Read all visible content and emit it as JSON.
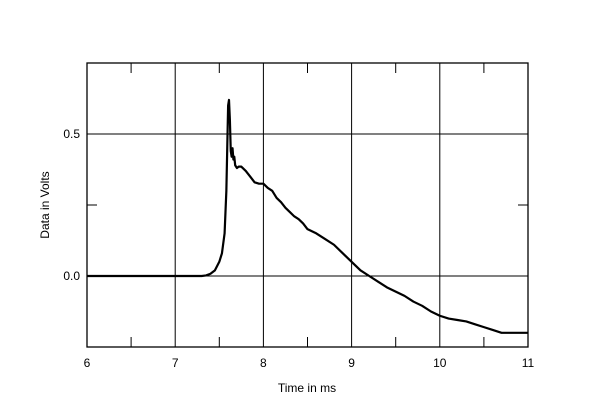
{
  "chart_data": {
    "type": "line",
    "title": "",
    "xlabel": "Time in ms",
    "ylabel": "Data in Volts",
    "xlim": [
      6,
      11
    ],
    "ylim": [
      -0.25,
      0.75
    ],
    "grid": true,
    "x_ticks": [
      6,
      7,
      8,
      9,
      10,
      11
    ],
    "x_tick_labels": [
      "6",
      "7",
      "8",
      "9",
      "10",
      "11"
    ],
    "y_ticks": [
      0.0,
      0.5
    ],
    "y_tick_labels": [
      "0.0",
      "0.5"
    ],
    "line_color": "#000000",
    "series": [
      {
        "x": [
          6.0,
          6.5,
          7.0,
          7.3,
          7.35,
          7.4,
          7.45,
          7.5,
          7.53,
          7.56,
          7.58,
          7.59,
          7.6,
          7.61,
          7.62,
          7.63,
          7.64,
          7.65,
          7.66,
          7.67,
          7.68,
          7.7,
          7.72,
          7.75,
          7.8,
          7.85,
          7.9,
          7.95,
          8.0,
          8.05,
          8.1,
          8.15,
          8.2,
          8.25,
          8.3,
          8.35,
          8.4,
          8.45,
          8.5,
          8.6,
          8.7,
          8.8,
          8.9,
          9.0,
          9.1,
          9.2,
          9.3,
          9.4,
          9.5,
          9.6,
          9.7,
          9.8,
          9.9,
          10.0,
          10.1,
          10.2,
          10.3,
          10.4,
          10.5,
          10.6,
          10.7,
          10.8,
          10.9,
          11.0
        ],
        "y": [
          0.0,
          0.0,
          0.0,
          0.0,
          0.002,
          0.008,
          0.02,
          0.05,
          0.08,
          0.15,
          0.3,
          0.45,
          0.6,
          0.62,
          0.55,
          0.44,
          0.42,
          0.45,
          0.41,
          0.42,
          0.39,
          0.38,
          0.385,
          0.385,
          0.37,
          0.35,
          0.33,
          0.325,
          0.325,
          0.31,
          0.3,
          0.275,
          0.26,
          0.24,
          0.225,
          0.21,
          0.2,
          0.185,
          0.165,
          0.15,
          0.13,
          0.11,
          0.08,
          0.05,
          0.02,
          0.0,
          -0.02,
          -0.04,
          -0.055,
          -0.07,
          -0.09,
          -0.105,
          -0.125,
          -0.14,
          -0.15,
          -0.155,
          -0.16,
          -0.17,
          -0.18,
          -0.19,
          -0.2,
          -0.2,
          -0.2,
          -0.2
        ]
      }
    ]
  }
}
